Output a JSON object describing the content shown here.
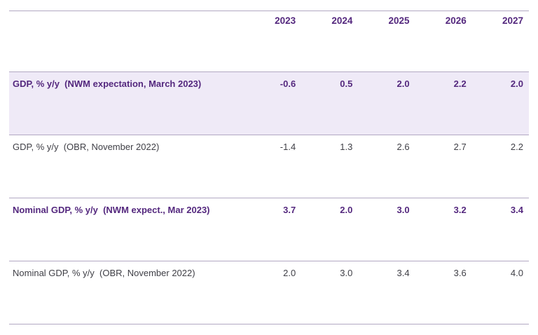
{
  "table": {
    "years": [
      "2023",
      "2024",
      "2025",
      "2026",
      "2027"
    ],
    "rows": [
      {
        "label": "GDP, % y/y  (NWM expectation, March 2023)",
        "values": [
          "-0.6",
          "0.5",
          "2.0",
          "2.2",
          "2.0"
        ],
        "style": "highlight"
      },
      {
        "label": "GDP, % y/y  (OBR, November 2022)",
        "values": [
          "-1.4",
          "1.3",
          "2.6",
          "2.7",
          "2.2"
        ],
        "style": "plain"
      },
      {
        "label": "Nominal GDP, % y/y  (NWM expect., Mar 2023)",
        "values": [
          "3.7",
          "2.0",
          "3.0",
          "3.2",
          "3.4"
        ],
        "style": "accent"
      },
      {
        "label": "Nominal GDP, % y/y  (OBR, November 2022)",
        "values": [
          "2.0",
          "3.0",
          "3.4",
          "3.6",
          "4.0"
        ],
        "style": "plain"
      }
    ]
  },
  "colors": {
    "accent": "#54287e",
    "text": "#3f3f46",
    "border": "#b2a8c3",
    "highlight-bg": "#efeaf7",
    "page-bg": "#ffffff"
  },
  "chart_data": {
    "type": "table",
    "title": "",
    "categories": [
      "2023",
      "2024",
      "2025",
      "2026",
      "2027"
    ],
    "series": [
      {
        "name": "GDP, % y/y (NWM expectation, March 2023)",
        "values": [
          -0.6,
          0.5,
          2.0,
          2.2,
          2.0
        ]
      },
      {
        "name": "GDP, % y/y (OBR, November 2022)",
        "values": [
          -1.4,
          1.3,
          2.6,
          2.7,
          2.2
        ]
      },
      {
        "name": "Nominal GDP, % y/y (NWM expect., Mar 2023)",
        "values": [
          3.7,
          2.0,
          3.0,
          3.2,
          3.4
        ]
      },
      {
        "name": "Nominal GDP, % y/y (OBR, November 2022)",
        "values": [
          2.0,
          3.0,
          3.4,
          3.6,
          4.0
        ]
      }
    ],
    "layout": {
      "header_row": "years",
      "highlighted_row": 0,
      "grid": "horizontal-rules-only"
    }
  }
}
